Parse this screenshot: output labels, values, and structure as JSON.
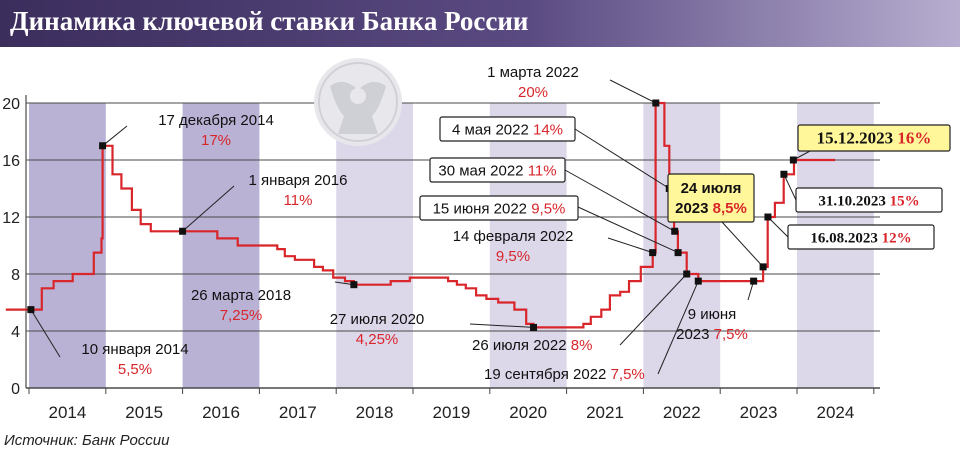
{
  "title": "Динамика ключевой ставки Банка России",
  "source": "Источник: Банк России",
  "colors": {
    "line": "#d8262b",
    "shade_light": "#ddd7ea",
    "shade_dark": "#bab2d5",
    "header_start": "#3b2d5c",
    "header_end": "#b7aed0",
    "highlight": "#fff79a"
  },
  "chart_data": {
    "type": "line",
    "title": "Динамика ключевой ставки Банка России",
    "xlabel": "",
    "ylabel": "",
    "xlim": [
      "2013-09-01",
      "2024-12-31"
    ],
    "ylim": [
      0,
      20
    ],
    "yticks": [
      0,
      4,
      8,
      12,
      16,
      20
    ],
    "years": [
      "2014",
      "2015",
      "2016",
      "2017",
      "2018",
      "2019",
      "2020",
      "2021",
      "2022",
      "2023",
      "2024"
    ],
    "grid": true,
    "series": [
      {
        "values": [
          [
            "2013-09-13",
            5.5
          ],
          [
            "2014-03-03",
            7.0
          ],
          [
            "2014-04-28",
            7.5
          ],
          [
            "2014-07-28",
            8.0
          ],
          [
            "2014-11-05",
            9.5
          ],
          [
            "2014-12-12",
            10.5
          ],
          [
            "2014-12-17",
            17.0
          ],
          [
            "2015-02-02",
            15.0
          ],
          [
            "2015-03-16",
            14.0
          ],
          [
            "2015-05-05",
            12.5
          ],
          [
            "2015-06-16",
            11.5
          ],
          [
            "2015-08-03",
            11.0
          ],
          [
            "2016-01-01",
            11.0
          ],
          [
            "2016-06-14",
            10.5
          ],
          [
            "2016-09-19",
            10.0
          ],
          [
            "2017-03-27",
            9.75
          ],
          [
            "2017-05-02",
            9.25
          ],
          [
            "2017-06-19",
            9.0
          ],
          [
            "2017-09-18",
            8.5
          ],
          [
            "2017-10-30",
            8.25
          ],
          [
            "2017-12-18",
            7.75
          ],
          [
            "2018-02-12",
            7.5
          ],
          [
            "2018-03-26",
            7.25
          ],
          [
            "2018-09-17",
            7.5
          ],
          [
            "2018-12-17",
            7.75
          ],
          [
            "2019-06-17",
            7.5
          ],
          [
            "2019-07-29",
            7.25
          ],
          [
            "2019-09-09",
            7.0
          ],
          [
            "2019-10-28",
            6.5
          ],
          [
            "2019-12-16",
            6.25
          ],
          [
            "2020-02-10",
            6.0
          ],
          [
            "2020-04-27",
            5.5
          ],
          [
            "2020-06-22",
            4.5
          ],
          [
            "2020-07-27",
            4.25
          ],
          [
            "2021-03-22",
            4.5
          ],
          [
            "2021-04-26",
            5.0
          ],
          [
            "2021-06-15",
            5.5
          ],
          [
            "2021-07-26",
            6.5
          ],
          [
            "2021-09-13",
            6.75
          ],
          [
            "2021-10-25",
            7.5
          ],
          [
            "2021-12-20",
            8.5
          ],
          [
            "2022-02-14",
            9.5
          ],
          [
            "2022-02-28",
            20.0
          ],
          [
            "2022-04-11",
            17.0
          ],
          [
            "2022-05-04",
            14.0
          ],
          [
            "2022-05-27",
            11.0
          ],
          [
            "2022-06-14",
            9.5
          ],
          [
            "2022-07-26",
            8.0
          ],
          [
            "2022-09-19",
            7.5
          ],
          [
            "2023-07-24",
            8.5
          ],
          [
            "2023-08-15",
            12.0
          ],
          [
            "2023-09-18",
            13.0
          ],
          [
            "2023-10-30",
            15.0
          ],
          [
            "2023-12-18",
            16.0
          ],
          [
            "2024-06-30",
            16.0
          ]
        ]
      }
    ],
    "shaded_years": [
      {
        "year": 2014,
        "tone": "dark"
      },
      {
        "year": 2016,
        "tone": "dark"
      },
      {
        "year": 2018,
        "tone": "light"
      },
      {
        "year": 2020,
        "tone": "light"
      },
      {
        "year": 2022,
        "tone": "light"
      },
      {
        "year": 2024,
        "tone": "light"
      }
    ],
    "annotations": [
      {
        "date": "2014-01-10",
        "text": "10 января 2014",
        "rate": "5,5%",
        "value": 5.5
      },
      {
        "date": "2014-12-17",
        "text": "17 декабря 2014",
        "rate": "17%",
        "value": 17
      },
      {
        "date": "2016-01-01",
        "text": "1 января 2016",
        "rate": "11%",
        "value": 11
      },
      {
        "date": "2018-03-26",
        "text": "26 марта 2018",
        "rate": "7,25%",
        "value": 7.25
      },
      {
        "date": "2020-07-27",
        "text": "27 июля 2020",
        "rate": "4,25%",
        "value": 4.25
      },
      {
        "date": "2022-02-14",
        "text": "14 февраля 2022",
        "rate": "9,5%",
        "value": 9.5
      },
      {
        "date": "2022-03-01",
        "text": "1 марта 2022",
        "rate": "20%",
        "value": 20
      },
      {
        "date": "2022-05-04",
        "text": "4 мая 2022",
        "rate": "14%",
        "value": 14
      },
      {
        "date": "2022-05-30",
        "text": "30 мая 2022",
        "rate": "11%",
        "value": 11
      },
      {
        "date": "2022-06-15",
        "text": "15 июня 2022",
        "rate": "9,5%",
        "value": 9.5
      },
      {
        "date": "2022-07-26",
        "text": "26 июля 2022",
        "rate": "8%",
        "value": 8
      },
      {
        "date": "2022-09-19",
        "text": "19 сентября 2022",
        "rate": "7,5%",
        "value": 7.5
      },
      {
        "date": "2023-06-09",
        "text": "9 июня",
        "text2": "2023",
        "rate": "7,5%",
        "value": 7.5
      },
      {
        "date": "2023-07-24",
        "text": "24 июля",
        "text2": "2023",
        "rate": "8,5%",
        "value": 8.5,
        "highlight": true
      },
      {
        "date": "2023-08-16",
        "text": "16.08.2023",
        "rate": "12%",
        "value": 12
      },
      {
        "date": "2023-10-31",
        "text": "31.10.2023",
        "rate": "15%",
        "value": 15
      },
      {
        "date": "2023-12-15",
        "text": "15.12.2023",
        "rate": "16%",
        "value": 16,
        "highlight": true
      }
    ]
  }
}
